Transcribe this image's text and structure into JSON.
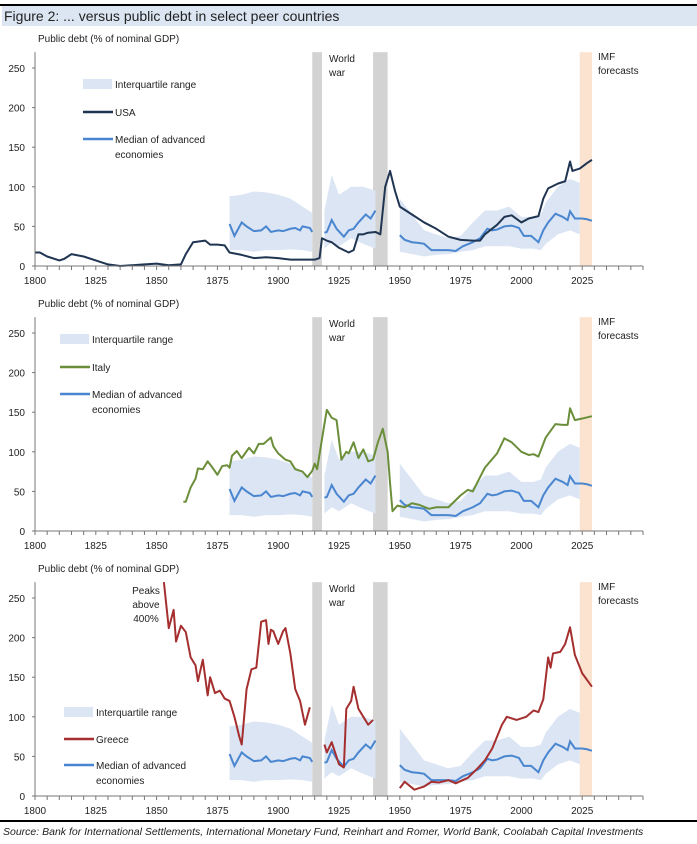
{
  "title": "Figure 2: ... versus public debt in select peer countries",
  "source": "Source: Bank for International Settlements, International Monetary Fund, Reinhart and Romer, World Bank, Coolabah Capital Investments",
  "colors": {
    "usa": "#1f3552",
    "italy": "#6b8e3a",
    "greece": "#a52f2f",
    "median": "#4a86d0",
    "iqr": "#dbe5f3",
    "war": "#d3d3d3",
    "forecast": "#fbe3cf"
  },
  "chart_data": [
    {
      "type": "line",
      "ylabel": "Public debt (% of nominal GDP)",
      "xlim": [
        1800,
        2050
      ],
      "ylim": [
        0,
        270
      ],
      "xticks": [
        1800,
        1825,
        1850,
        1875,
        1900,
        1925,
        1950,
        1975,
        2000,
        2025
      ],
      "yticks": [
        0,
        50,
        100,
        150,
        200,
        250
      ],
      "annotations": {
        "war": "World war",
        "war_line1": "World",
        "war_line2": "war",
        "imf_line1": "IMF",
        "imf_line2": "forecasts"
      },
      "shaded": {
        "war": [
          [
            1914,
            1918
          ],
          [
            1939,
            1945
          ]
        ],
        "forecast": [
          2024,
          2029
        ]
      },
      "legend": {
        "iqr": "Interquartile range",
        "country": "USA",
        "median_line1": "Median of advanced",
        "median_line2": "economies"
      },
      "country_key": "usa",
      "country": [
        [
          1800,
          17
        ],
        [
          1802,
          17
        ],
        [
          1805,
          12
        ],
        [
          1810,
          7
        ],
        [
          1812,
          9
        ],
        [
          1815,
          15
        ],
        [
          1820,
          12
        ],
        [
          1825,
          7
        ],
        [
          1830,
          2
        ],
        [
          1835,
          0
        ],
        [
          1840,
          1
        ],
        [
          1845,
          2
        ],
        [
          1850,
          3
        ],
        [
          1855,
          1
        ],
        [
          1860,
          2
        ],
        [
          1862,
          15
        ],
        [
          1865,
          30
        ],
        [
          1870,
          32
        ],
        [
          1872,
          27
        ],
        [
          1875,
          27
        ],
        [
          1878,
          26
        ],
        [
          1880,
          17
        ],
        [
          1885,
          14
        ],
        [
          1890,
          10
        ],
        [
          1895,
          11
        ],
        [
          1900,
          10
        ],
        [
          1905,
          8
        ],
        [
          1910,
          8
        ],
        [
          1915,
          8
        ],
        [
          1917,
          10
        ],
        [
          1918,
          35
        ],
        [
          1920,
          32
        ],
        [
          1922,
          30
        ],
        [
          1925,
          23
        ],
        [
          1929,
          17
        ],
        [
          1931,
          20
        ],
        [
          1933,
          40
        ],
        [
          1935,
          40
        ],
        [
          1937,
          42
        ],
        [
          1940,
          43
        ],
        [
          1942,
          40
        ],
        [
          1944,
          100
        ],
        [
          1946,
          120
        ],
        [
          1948,
          95
        ],
        [
          1950,
          75
        ],
        [
          1955,
          65
        ],
        [
          1960,
          55
        ],
        [
          1965,
          47
        ],
        [
          1970,
          37
        ],
        [
          1975,
          33
        ],
        [
          1980,
          32
        ],
        [
          1983,
          32
        ],
        [
          1985,
          40
        ],
        [
          1990,
          52
        ],
        [
          1993,
          62
        ],
        [
          1996,
          64
        ],
        [
          2000,
          55
        ],
        [
          2003,
          60
        ],
        [
          2007,
          63
        ],
        [
          2009,
          85
        ],
        [
          2011,
          98
        ],
        [
          2015,
          104
        ],
        [
          2018,
          107
        ],
        [
          2020,
          132
        ],
        [
          2021,
          120
        ],
        [
          2024,
          123
        ],
        [
          2027,
          130
        ],
        [
          2029,
          134
        ]
      ]
    },
    {
      "type": "line",
      "ylabel": "Public debt (% of nominal GDP)",
      "xlim": [
        1800,
        2050
      ],
      "ylim": [
        0,
        270
      ],
      "xticks": [
        1800,
        1825,
        1850,
        1875,
        1900,
        1925,
        1950,
        1975,
        2000,
        2025
      ],
      "yticks": [
        0,
        50,
        100,
        150,
        200,
        250
      ],
      "annotations": {
        "war_line1": "World",
        "war_line2": "war",
        "imf_line1": "IMF",
        "imf_line2": "forecasts"
      },
      "shaded": {
        "war": [
          [
            1914,
            1918
          ],
          [
            1939,
            1945
          ]
        ],
        "forecast": [
          2024,
          2029
        ]
      },
      "legend": {
        "iqr": "Interquartile range",
        "country": "Italy",
        "median_line1": "Median of advanced",
        "median_line2": "economies"
      },
      "country_key": "italy",
      "country": [
        [
          1861,
          37
        ],
        [
          1862,
          37
        ],
        [
          1864,
          55
        ],
        [
          1866,
          66
        ],
        [
          1867,
          79
        ],
        [
          1869,
          78
        ],
        [
          1871,
          88
        ],
        [
          1873,
          80
        ],
        [
          1875,
          71
        ],
        [
          1877,
          82
        ],
        [
          1879,
          83
        ],
        [
          1880,
          80
        ],
        [
          1881,
          95
        ],
        [
          1883,
          101
        ],
        [
          1885,
          92
        ],
        [
          1888,
          105
        ],
        [
          1890,
          98
        ],
        [
          1892,
          110
        ],
        [
          1894,
          110
        ],
        [
          1897,
          118
        ],
        [
          1898,
          107
        ],
        [
          1900,
          98
        ],
        [
          1903,
          90
        ],
        [
          1905,
          88
        ],
        [
          1907,
          78
        ],
        [
          1910,
          75
        ],
        [
          1912,
          68
        ],
        [
          1914,
          76
        ],
        [
          1915,
          85
        ],
        [
          1916,
          78
        ],
        [
          1919,
          135
        ],
        [
          1920,
          153
        ],
        [
          1922,
          143
        ],
        [
          1924,
          140
        ],
        [
          1926,
          90
        ],
        [
          1928,
          100
        ],
        [
          1929,
          98
        ],
        [
          1931,
          112
        ],
        [
          1933,
          92
        ],
        [
          1935,
          103
        ],
        [
          1937,
          88
        ],
        [
          1939,
          90
        ],
        [
          1941,
          112
        ],
        [
          1943,
          129
        ],
        [
          1945,
          100
        ],
        [
          1946,
          60
        ],
        [
          1947,
          25
        ],
        [
          1949,
          32
        ],
        [
          1952,
          30
        ],
        [
          1955,
          35
        ],
        [
          1958,
          33
        ],
        [
          1962,
          28
        ],
        [
          1965,
          30
        ],
        [
          1970,
          30
        ],
        [
          1975,
          45
        ],
        [
          1978,
          52
        ],
        [
          1980,
          50
        ],
        [
          1985,
          80
        ],
        [
          1990,
          98
        ],
        [
          1993,
          117
        ],
        [
          1996,
          112
        ],
        [
          2000,
          100
        ],
        [
          2003,
          96
        ],
        [
          2005,
          97
        ],
        [
          2007,
          94
        ],
        [
          2010,
          118
        ],
        [
          2014,
          135
        ],
        [
          2017,
          134
        ],
        [
          2019,
          134
        ],
        [
          2020,
          155
        ],
        [
          2022,
          140
        ],
        [
          2025,
          142
        ],
        [
          2029,
          145
        ]
      ]
    },
    {
      "type": "line",
      "ylabel": "Public debt (% of nominal GDP)",
      "xlim": [
        1800,
        2050
      ],
      "ylim": [
        0,
        270
      ],
      "xticks": [
        1800,
        1825,
        1850,
        1875,
        1900,
        1925,
        1950,
        1975,
        2000,
        2025
      ],
      "yticks": [
        0,
        50,
        100,
        150,
        200,
        250
      ],
      "annotations": {
        "war_line1": "World",
        "war_line2": "war",
        "imf_line1": "IMF",
        "imf_line2": "forecasts",
        "peak_line1": "Peaks",
        "peak_line2": "above",
        "peak_line3": "400%"
      },
      "shaded": {
        "war": [
          [
            1914,
            1918
          ],
          [
            1939,
            1945
          ]
        ],
        "forecast": [
          2024,
          2029
        ]
      },
      "legend": {
        "iqr": "Interquartile range",
        "country": "Greece",
        "median_line1": "Median of advanced",
        "median_line2": "economies"
      },
      "country_key": "greece",
      "country_segments": [
        [
          [
            1853,
            270
          ],
          [
            1855,
            212
          ],
          [
            1857,
            235
          ],
          [
            1858,
            195
          ],
          [
            1860,
            215
          ],
          [
            1862,
            207
          ],
          [
            1864,
            175
          ],
          [
            1866,
            165
          ],
          [
            1867,
            145
          ],
          [
            1869,
            172
          ],
          [
            1871,
            127
          ],
          [
            1872,
            150
          ],
          [
            1874,
            130
          ],
          [
            1876,
            133
          ],
          [
            1878,
            123
          ],
          [
            1880,
            120
          ],
          [
            1882,
            100
          ],
          [
            1884,
            75
          ],
          [
            1885,
            65
          ],
          [
            1887,
            135
          ],
          [
            1889,
            160
          ],
          [
            1891,
            162
          ],
          [
            1893,
            220
          ],
          [
            1895,
            222
          ],
          [
            1896,
            192
          ],
          [
            1897,
            210
          ],
          [
            1898,
            208
          ],
          [
            1899,
            200
          ],
          [
            1900,
            192
          ],
          [
            1902,
            208
          ],
          [
            1903,
            212
          ],
          [
            1905,
            180
          ],
          [
            1907,
            135
          ],
          [
            1909,
            120
          ],
          [
            1911,
            90
          ],
          [
            1913,
            112
          ]
        ],
        [
          [
            1919,
            65
          ],
          [
            1920,
            55
          ],
          [
            1922,
            68
          ],
          [
            1925,
            40
          ],
          [
            1927,
            36
          ],
          [
            1928,
            110
          ],
          [
            1930,
            120
          ],
          [
            1931,
            138
          ],
          [
            1933,
            110
          ],
          [
            1935,
            100
          ],
          [
            1937,
            90
          ],
          [
            1939,
            96
          ]
        ],
        [
          [
            1950,
            10
          ],
          [
            1952,
            18
          ],
          [
            1956,
            8
          ],
          [
            1958,
            10
          ],
          [
            1960,
            12
          ],
          [
            1963,
            18
          ],
          [
            1966,
            17
          ],
          [
            1970,
            20
          ],
          [
            1973,
            16
          ],
          [
            1978,
            23
          ],
          [
            1982,
            35
          ],
          [
            1985,
            45
          ],
          [
            1988,
            60
          ],
          [
            1990,
            75
          ],
          [
            1992,
            90
          ],
          [
            1994,
            100
          ],
          [
            1998,
            96
          ],
          [
            2002,
            100
          ],
          [
            2005,
            108
          ],
          [
            2007,
            106
          ],
          [
            2009,
            122
          ],
          [
            2011,
            175
          ],
          [
            2012,
            162
          ],
          [
            2013,
            180
          ],
          [
            2016,
            182
          ],
          [
            2018,
            192
          ],
          [
            2020,
            213
          ],
          [
            2022,
            178
          ],
          [
            2025,
            155
          ],
          [
            2029,
            138
          ]
        ]
      ]
    }
  ],
  "median_segments": [
    [
      [
        1880,
        53
      ],
      [
        1882,
        38
      ],
      [
        1885,
        55
      ],
      [
        1887,
        50
      ],
      [
        1890,
        44
      ],
      [
        1893,
        45
      ],
      [
        1895,
        50
      ],
      [
        1897,
        43
      ],
      [
        1900,
        45
      ],
      [
        1902,
        44
      ],
      [
        1905,
        47
      ],
      [
        1907,
        48
      ],
      [
        1909,
        45
      ],
      [
        1910,
        50
      ],
      [
        1913,
        48
      ],
      [
        1914,
        43
      ]
    ],
    [
      [
        1919,
        42
      ],
      [
        1920,
        43
      ],
      [
        1922,
        58
      ],
      [
        1924,
        47
      ],
      [
        1927,
        37
      ],
      [
        1929,
        45
      ],
      [
        1931,
        47
      ],
      [
        1933,
        55
      ],
      [
        1936,
        65
      ],
      [
        1938,
        60
      ],
      [
        1940,
        70
      ]
    ],
    [
      [
        1950,
        39
      ],
      [
        1952,
        33
      ],
      [
        1955,
        30
      ],
      [
        1958,
        29
      ],
      [
        1960,
        28
      ],
      [
        1963,
        20
      ],
      [
        1966,
        20
      ],
      [
        1970,
        20
      ],
      [
        1973,
        19
      ],
      [
        1976,
        25
      ],
      [
        1980,
        30
      ],
      [
        1983,
        35
      ],
      [
        1986,
        47
      ],
      [
        1988,
        45
      ],
      [
        1990,
        46
      ],
      [
        1993,
        50
      ],
      [
        1996,
        51
      ],
      [
        1999,
        48
      ],
      [
        2001,
        38
      ],
      [
        2004,
        38
      ],
      [
        2007,
        30
      ],
      [
        2009,
        45
      ],
      [
        2011,
        55
      ],
      [
        2014,
        66
      ],
      [
        2017,
        62
      ],
      [
        2019,
        58
      ],
      [
        2020,
        69
      ],
      [
        2022,
        60
      ],
      [
        2025,
        60
      ],
      [
        2027,
        59
      ],
      [
        2029,
        57
      ]
    ]
  ],
  "iqr_segments": [
    [
      [
        1880,
        20,
        88
      ],
      [
        1885,
        20,
        90
      ],
      [
        1890,
        18,
        94
      ],
      [
        1895,
        20,
        93
      ],
      [
        1900,
        20,
        90
      ],
      [
        1905,
        21,
        85
      ],
      [
        1910,
        20,
        75
      ],
      [
        1914,
        18,
        67
      ]
    ],
    [
      [
        1919,
        22,
        70
      ],
      [
        1922,
        30,
        115
      ],
      [
        1925,
        25,
        90
      ],
      [
        1930,
        35,
        100
      ],
      [
        1935,
        28,
        100
      ],
      [
        1940,
        22,
        95
      ]
    ],
    [
      [
        1950,
        18,
        85
      ],
      [
        1955,
        15,
        65
      ],
      [
        1960,
        12,
        45
      ],
      [
        1965,
        14,
        40
      ],
      [
        1970,
        15,
        35
      ],
      [
        1975,
        18,
        38
      ],
      [
        1980,
        20,
        55
      ],
      [
        1985,
        25,
        70
      ],
      [
        1990,
        25,
        70
      ],
      [
        1995,
        25,
        75
      ],
      [
        2000,
        22,
        62
      ],
      [
        2005,
        22,
        62
      ],
      [
        2008,
        20,
        65
      ],
      [
        2010,
        28,
        80
      ],
      [
        2015,
        40,
        100
      ],
      [
        2020,
        45,
        110
      ],
      [
        2024,
        40,
        105
      ]
    ]
  ]
}
